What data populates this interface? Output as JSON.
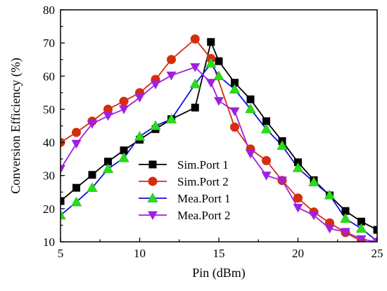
{
  "chart_data": {
    "type": "line",
    "title": "",
    "xlabel": "Pin (dBm)",
    "ylabel": "Conversion Efficiency (%)",
    "xlim": [
      5,
      25
    ],
    "ylim": [
      10,
      80
    ],
    "xticks": [
      5,
      10,
      15,
      20,
      25
    ],
    "yticks": [
      10,
      20,
      30,
      40,
      50,
      60,
      70,
      80
    ],
    "grid": false,
    "legend_position": "center-left",
    "series": [
      {
        "name": "Sim.Port 1",
        "color": "#000000",
        "marker": "square",
        "x": [
          5,
          6,
          7,
          8,
          9,
          10,
          11,
          12,
          13.5,
          14.5,
          15,
          16,
          17,
          18,
          19,
          20,
          21,
          22,
          23,
          24,
          25
        ],
        "y": [
          22.3,
          26.3,
          30.2,
          34.2,
          37.6,
          40.8,
          44,
          47,
          50.5,
          70.3,
          64.5,
          58,
          53,
          46.4,
          40.4,
          34,
          28.6,
          24,
          19.3,
          16.1,
          13.6
        ]
      },
      {
        "name": "Sim.Port 2",
        "color": "#d62d0f",
        "marker": "circle",
        "x": [
          5,
          6,
          7,
          8,
          9,
          10,
          11,
          12,
          13.5,
          14.5,
          16,
          17,
          18,
          19,
          20,
          21,
          22,
          23,
          24,
          25
        ],
        "y": [
          40,
          43,
          46.4,
          50,
          52.4,
          55,
          59,
          65,
          71.2,
          65.3,
          44.6,
          38,
          34.5,
          28.5,
          23.2,
          19,
          15.7,
          12.8,
          10.2,
          9.2
        ]
      },
      {
        "name": "Mea.Port 1",
        "color": "#1010e0",
        "marker": "triangle-up",
        "x": [
          5,
          6,
          7,
          8,
          9,
          10,
          11,
          12,
          13.5,
          14.5,
          15,
          16,
          17,
          18,
          19,
          20,
          21,
          22,
          23,
          24,
          25
        ],
        "y": [
          18,
          22,
          26.3,
          32,
          35.3,
          41.8,
          45,
          47,
          57.6,
          63.8,
          60,
          56,
          50.1,
          44,
          39,
          32.3,
          28,
          24.1,
          17,
          14,
          10.2
        ]
      },
      {
        "name": "Mea.Port 2",
        "color": "#a020e0",
        "marker": "triangle-down",
        "x": [
          5,
          6,
          7,
          8,
          9,
          10,
          11,
          12,
          13.5,
          14.5,
          15,
          16,
          17,
          18,
          19,
          20,
          21,
          22,
          23,
          24,
          25
        ],
        "y": [
          32,
          39.6,
          45.6,
          48,
          50,
          53.5,
          57.5,
          60.2,
          62.7,
          58,
          52.5,
          49.4,
          36.6,
          30,
          28.5,
          20.3,
          18,
          14,
          13,
          10.8,
          10
        ]
      }
    ]
  }
}
